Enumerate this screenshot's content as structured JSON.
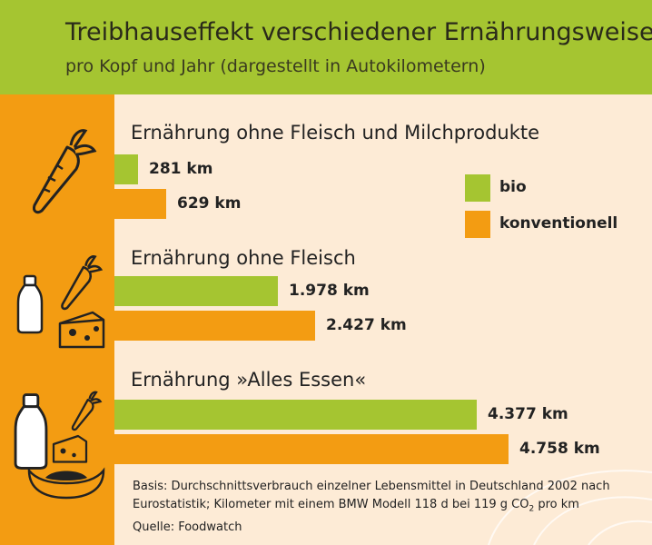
{
  "header": {
    "title": "Treibhauseffekt verschiedener Ernährungsweisen",
    "subtitle": "pro Kopf und Jahr (dargestellt in Autokilometern)"
  },
  "colors": {
    "bio": "#a5c531",
    "conventional": "#f39c12",
    "background": "#fdebd6"
  },
  "icons": [
    "carrot-icon",
    "milk-bottle-icon",
    "cheese-icon",
    "sausage-icon"
  ],
  "chart_data": {
    "type": "bar",
    "orientation": "horizontal",
    "categories": [
      "Ernährung ohne Fleisch und Milchprodukte",
      "Ernährung ohne Fleisch",
      "Ernährung »Alles Essen«"
    ],
    "series": [
      {
        "name": "bio",
        "values": [
          281,
          1978,
          4377
        ],
        "labels": [
          "281 km",
          "1.978 km",
          "4.377 km"
        ]
      },
      {
        "name": "konventionell",
        "values": [
          629,
          2427,
          4758
        ],
        "labels": [
          "629 km",
          "2.427 km",
          "4.758 km"
        ]
      }
    ],
    "legend_position": "top-right",
    "grid": false
  },
  "footnote": {
    "line1": "Basis: Durchschnittsverbrauch einzelner Lebensmittel in Deutschland 2002 nach",
    "line2_pre": "Eurostatistik; Kilometer mit einem BMW Modell 118 d bei 119 g CO",
    "line2_sub": "2",
    "line2_post": " pro km",
    "line3": "Quelle: Foodwatch"
  }
}
